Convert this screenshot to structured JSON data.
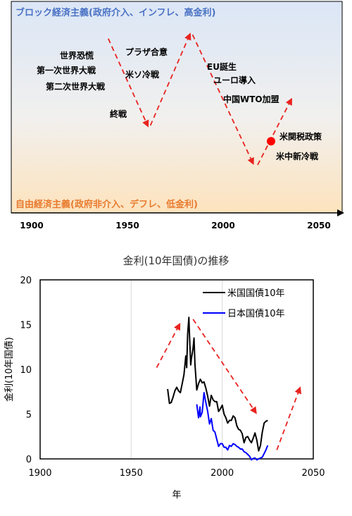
{
  "colors": {
    "arrow": "#e8231f",
    "dot": "#ff0000",
    "top_label": "#4a72c4",
    "bottom_label": "#e87a2e",
    "us_series": "#000000",
    "jp_series": "#0000ff",
    "grid": "#d9d9d9"
  },
  "concept": {
    "top_label": "ブロック経済主義(政府介入、インフレ、高金利)",
    "bottom_label": "自由経済主義(政府非介入、デフレ、低金利)",
    "xticks": [
      "1900",
      "1950",
      "2000",
      "2050"
    ],
    "events": [
      {
        "id": "great-depression",
        "text": "世界恐慌"
      },
      {
        "id": "ww1",
        "text": "第一次世界大戦"
      },
      {
        "id": "ww2",
        "text": "第二次世界大戦"
      },
      {
        "id": "war-end",
        "text": "終戦"
      },
      {
        "id": "cold-war",
        "text": "米ソ冷戦"
      },
      {
        "id": "plaza",
        "text": "プラザ合意"
      },
      {
        "id": "eu",
        "text": "EU誕生"
      },
      {
        "id": "euro",
        "text": "ユーロ導入"
      },
      {
        "id": "china-wto",
        "text": "中国WTO加盟"
      },
      {
        "id": "us-tariff",
        "text": "米関税政策"
      },
      {
        "id": "us-china-cold-war",
        "text": "米中新冷戦"
      }
    ],
    "trend_arrows": [
      {
        "from": [
          1940,
          0.84
        ],
        "to": [
          1961,
          0.39
        ]
      },
      {
        "from": [
          1962,
          0.4
        ],
        "to": [
          1983,
          0.87
        ]
      },
      {
        "from": [
          1984,
          0.86
        ],
        "to": [
          2016,
          0.2
        ]
      },
      {
        "from": [
          2018,
          0.2
        ],
        "to": [
          2036,
          0.54
        ]
      }
    ],
    "current_marker": {
      "year": 2025,
      "level": 0.32
    }
  },
  "chart_data": {
    "type": "line",
    "title": "金利(10年国債)の推移",
    "xlabel": "年",
    "ylabel": "金利(10年国債)",
    "xlim": [
      1900,
      2050
    ],
    "ylim": [
      0,
      20
    ],
    "xticks": [
      1900,
      1950,
      2000,
      2050
    ],
    "yticks": [
      0,
      5,
      10,
      15,
      20
    ],
    "grid": "vertical",
    "legend_position": "top-right",
    "series": [
      {
        "name": "米国国債10年",
        "color": "#000000",
        "points": [
          [
            1970,
            7.8
          ],
          [
            1971,
            6.2
          ],
          [
            1972,
            6.3
          ],
          [
            1973,
            6.9
          ],
          [
            1974,
            7.6
          ],
          [
            1975,
            8.0
          ],
          [
            1976,
            7.6
          ],
          [
            1977,
            7.4
          ],
          [
            1978,
            8.4
          ],
          [
            1979,
            9.4
          ],
          [
            1980,
            11.5
          ],
          [
            1980.5,
            10.2
          ],
          [
            1981,
            13.9
          ],
          [
            1981.7,
            15.8
          ],
          [
            1982,
            14.0
          ],
          [
            1982.7,
            10.5
          ],
          [
            1983,
            11.1
          ],
          [
            1984,
            12.4
          ],
          [
            1984.5,
            13.5
          ],
          [
            1985,
            10.6
          ],
          [
            1986,
            7.7
          ],
          [
            1987,
            8.4
          ],
          [
            1988,
            8.9
          ],
          [
            1989,
            8.5
          ],
          [
            1990,
            8.6
          ],
          [
            1991,
            7.9
          ],
          [
            1992,
            7.0
          ],
          [
            1993,
            5.9
          ],
          [
            1994,
            7.1
          ],
          [
            1995,
            6.6
          ],
          [
            1996,
            6.4
          ],
          [
            1997,
            6.4
          ],
          [
            1998,
            5.3
          ],
          [
            1999,
            5.6
          ],
          [
            2000,
            6.0
          ],
          [
            2001,
            5.0
          ],
          [
            2002,
            4.6
          ],
          [
            2003,
            4.0
          ],
          [
            2004,
            4.3
          ],
          [
            2005,
            4.3
          ],
          [
            2006,
            4.8
          ],
          [
            2007,
            4.6
          ],
          [
            2008,
            3.7
          ],
          [
            2009,
            3.3
          ],
          [
            2010,
            3.2
          ],
          [
            2011,
            2.8
          ],
          [
            2012,
            1.8
          ],
          [
            2013,
            2.4
          ],
          [
            2014,
            2.5
          ],
          [
            2015,
            2.1
          ],
          [
            2016,
            1.8
          ],
          [
            2017,
            2.3
          ],
          [
            2018,
            2.9
          ],
          [
            2019,
            2.1
          ],
          [
            2020,
            0.9
          ],
          [
            2021,
            1.5
          ],
          [
            2022,
            3.0
          ],
          [
            2023,
            4.0
          ],
          [
            2024,
            4.2
          ],
          [
            2025,
            4.3
          ]
        ]
      },
      {
        "name": "日本国債10年",
        "color": "#0000ff",
        "points": [
          [
            1986,
            6.1
          ],
          [
            1987,
            4.6
          ],
          [
            1987.8,
            5.8
          ],
          [
            1988,
            4.7
          ],
          [
            1989,
            5.2
          ],
          [
            1990,
            7.4
          ],
          [
            1991,
            6.3
          ],
          [
            1992,
            5.3
          ],
          [
            1993,
            3.9
          ],
          [
            1994,
            4.5
          ],
          [
            1995,
            3.2
          ],
          [
            1996,
            3.0
          ],
          [
            1997,
            2.2
          ],
          [
            1998,
            1.4
          ],
          [
            1999,
            1.7
          ],
          [
            2000,
            1.7
          ],
          [
            2001,
            1.3
          ],
          [
            2002,
            1.3
          ],
          [
            2003,
            1.0
          ],
          [
            2004,
            1.5
          ],
          [
            2005,
            1.4
          ],
          [
            2006,
            1.7
          ],
          [
            2007,
            1.6
          ],
          [
            2008,
            1.4
          ],
          [
            2009,
            1.3
          ],
          [
            2010,
            1.1
          ],
          [
            2011,
            1.1
          ],
          [
            2012,
            0.8
          ],
          [
            2013,
            0.7
          ],
          [
            2014,
            0.5
          ],
          [
            2015,
            0.3
          ],
          [
            2016,
            -0.1
          ],
          [
            2017,
            0.05
          ],
          [
            2018,
            0.1
          ],
          [
            2019,
            -0.1
          ],
          [
            2020,
            0.0
          ],
          [
            2021,
            0.1
          ],
          [
            2022,
            0.2
          ],
          [
            2023,
            0.6
          ],
          [
            2024,
            1.0
          ],
          [
            2025,
            1.5
          ]
        ]
      }
    ],
    "trend_arrows": [
      {
        "from": [
          1964,
          10.2
        ],
        "to": [
          1977,
          15.2
        ]
      },
      {
        "from": [
          1984,
          15.6
        ],
        "to": [
          2019,
          5.0
        ]
      },
      {
        "from": [
          2030,
          1.0
        ],
        "to": [
          2043,
          8.1
        ]
      }
    ]
  }
}
